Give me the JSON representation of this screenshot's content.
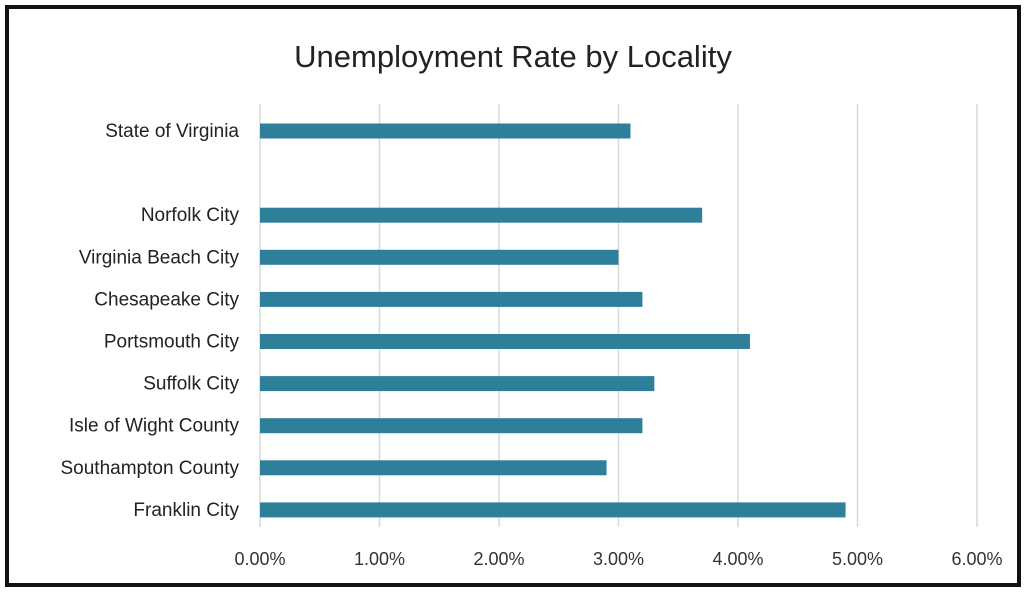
{
  "chart_data": {
    "type": "bar",
    "orientation": "horizontal",
    "title": "Unemployment Rate by Locality",
    "xlabel": "",
    "ylabel": "",
    "xlim": [
      0,
      0.06
    ],
    "x_ticks": [
      0,
      0.01,
      0.02,
      0.03,
      0.04,
      0.05,
      0.06
    ],
    "x_tick_labels": [
      "0.00%",
      "1.00%",
      "2.00%",
      "3.00%",
      "4.00%",
      "5.00%",
      "6.00%"
    ],
    "categories": [
      "State of Virginia",
      "",
      "Norfolk City",
      "Virginia Beach City",
      "Chesapeake City",
      "Portsmouth City",
      "Suffolk City",
      "Isle of Wight County",
      "Southampton County",
      "Franklin City"
    ],
    "values": [
      0.031,
      null,
      0.037,
      0.03,
      0.032,
      0.041,
      0.033,
      0.032,
      0.029,
      0.049
    ],
    "bar_color": "#2e7f9a",
    "grid": "vertical",
    "grid_color": "#d9d9d9",
    "legend": "none"
  }
}
